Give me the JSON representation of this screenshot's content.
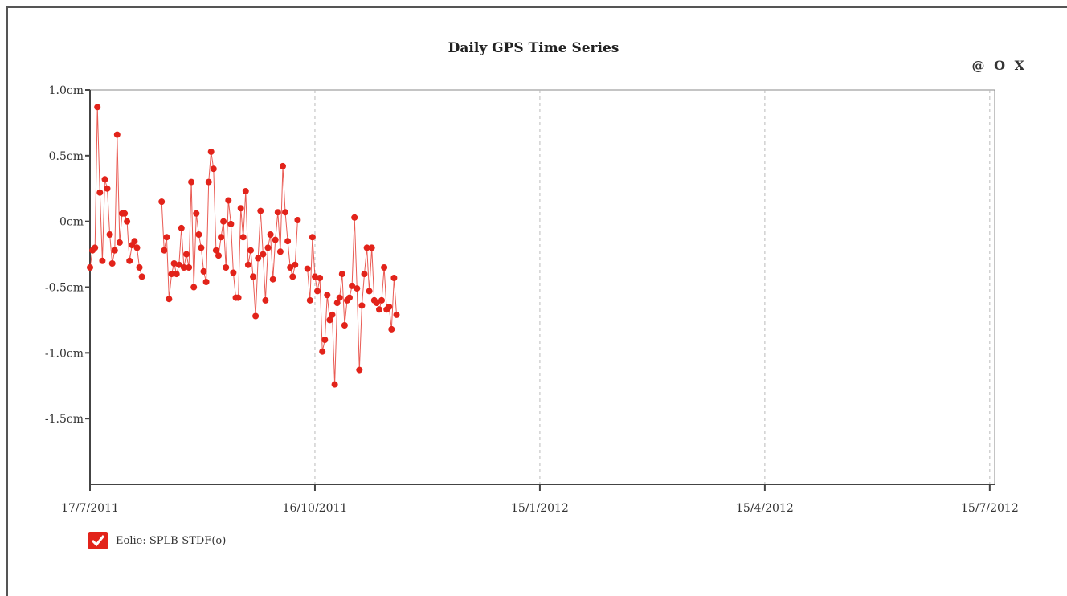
{
  "header": {
    "title": "Daily GPS Time Series",
    "controls": [
      "@",
      "O",
      "X"
    ]
  },
  "legend": {
    "label": "Eolie: SPLB-STDF(o)",
    "checked": true,
    "checkbox_color": "#e2231a"
  },
  "colors": {
    "series": "#e2231a",
    "axis": "#444444",
    "grid": "#bbbbbb"
  },
  "chart_data": {
    "type": "line",
    "title": "Daily GPS Time Series",
    "xlabel": "",
    "ylabel": "",
    "x_ticks": [
      "17/7/2011",
      "16/10/2011",
      "15/1/2012",
      "15/4/2012",
      "15/7/2012"
    ],
    "xlim": [
      "2011-07-17",
      "2012-07-17"
    ],
    "y_ticks": [
      "1.0cm",
      "0.5cm",
      "0cm",
      "-0.5cm",
      "-1.0cm",
      "-1.5cm"
    ],
    "y_tick_values": [
      1.0,
      0.5,
      0.0,
      -0.5,
      -1.0,
      -1.5
    ],
    "ylim": [
      -2.0,
      1.0
    ],
    "unit": "cm",
    "grid": "vertical dashed at x ticks",
    "legend_position": "bottom-left",
    "series": [
      {
        "name": "Eolie: SPLB-STDF(o)",
        "color": "#e2231a",
        "segments": [
          [
            [
              "2011-07-17",
              -0.35
            ],
            [
              "2011-07-18",
              -0.22
            ],
            [
              "2011-07-19",
              -0.2
            ],
            [
              "2011-07-20",
              0.87
            ],
            [
              "2011-07-21",
              0.22
            ],
            [
              "2011-07-22",
              -0.3
            ],
            [
              "2011-07-23",
              0.32
            ],
            [
              "2011-07-24",
              0.25
            ],
            [
              "2011-07-25",
              -0.1
            ],
            [
              "2011-07-26",
              -0.32
            ],
            [
              "2011-07-27",
              -0.22
            ],
            [
              "2011-07-28",
              0.66
            ],
            [
              "2011-07-29",
              -0.16
            ],
            [
              "2011-07-30",
              0.06
            ],
            [
              "2011-07-31",
              0.06
            ],
            [
              "2011-08-01",
              0.0
            ],
            [
              "2011-08-02",
              -0.3
            ],
            [
              "2011-08-03",
              -0.18
            ],
            [
              "2011-08-04",
              -0.15
            ],
            [
              "2011-08-05",
              -0.2
            ],
            [
              "2011-08-06",
              -0.35
            ],
            [
              "2011-08-07",
              -0.42
            ]
          ],
          [
            [
              "2011-08-15",
              0.15
            ],
            [
              "2011-08-16",
              -0.22
            ],
            [
              "2011-08-17",
              -0.12
            ],
            [
              "2011-08-18",
              -0.59
            ],
            [
              "2011-08-19",
              -0.4
            ],
            [
              "2011-08-20",
              -0.32
            ],
            [
              "2011-08-21",
              -0.4
            ],
            [
              "2011-08-22",
              -0.33
            ],
            [
              "2011-08-23",
              -0.05
            ],
            [
              "2011-08-24",
              -0.35
            ],
            [
              "2011-08-25",
              -0.25
            ],
            [
              "2011-08-26",
              -0.35
            ],
            [
              "2011-08-27",
              0.3
            ],
            [
              "2011-08-28",
              -0.5
            ],
            [
              "2011-08-29",
              0.06
            ],
            [
              "2011-08-30",
              -0.1
            ],
            [
              "2011-08-31",
              -0.2
            ],
            [
              "2011-09-01",
              -0.38
            ],
            [
              "2011-09-02",
              -0.46
            ],
            [
              "2011-09-03",
              0.3
            ],
            [
              "2011-09-04",
              0.53
            ],
            [
              "2011-09-05",
              0.4
            ],
            [
              "2011-09-06",
              -0.22
            ],
            [
              "2011-09-07",
              -0.26
            ],
            [
              "2011-09-08",
              -0.12
            ],
            [
              "2011-09-09",
              0.0
            ],
            [
              "2011-09-10",
              -0.35
            ],
            [
              "2011-09-11",
              0.16
            ],
            [
              "2011-09-12",
              -0.02
            ],
            [
              "2011-09-13",
              -0.39
            ],
            [
              "2011-09-14",
              -0.58
            ],
            [
              "2011-09-15",
              -0.58
            ],
            [
              "2011-09-16",
              0.1
            ],
            [
              "2011-09-17",
              -0.12
            ],
            [
              "2011-09-18",
              0.23
            ],
            [
              "2011-09-19",
              -0.33
            ],
            [
              "2011-09-20",
              -0.22
            ],
            [
              "2011-09-21",
              -0.42
            ],
            [
              "2011-09-22",
              -0.72
            ],
            [
              "2011-09-23",
              -0.28
            ],
            [
              "2011-09-24",
              0.08
            ],
            [
              "2011-09-25",
              -0.25
            ],
            [
              "2011-09-26",
              -0.6
            ],
            [
              "2011-09-27",
              -0.2
            ],
            [
              "2011-09-28",
              -0.1
            ],
            [
              "2011-09-29",
              -0.44
            ],
            [
              "2011-09-30",
              -0.14
            ],
            [
              "2011-10-01",
              0.07
            ],
            [
              "2011-10-02",
              -0.23
            ],
            [
              "2011-10-03",
              0.42
            ],
            [
              "2011-10-04",
              0.07
            ],
            [
              "2011-10-05",
              -0.15
            ],
            [
              "2011-10-06",
              -0.35
            ],
            [
              "2011-10-07",
              -0.42
            ],
            [
              "2011-10-08",
              -0.33
            ],
            [
              "2011-10-09",
              0.01
            ]
          ],
          [
            [
              "2011-10-13",
              -0.36
            ],
            [
              "2011-10-14",
              -0.6
            ],
            [
              "2011-10-15",
              -0.12
            ],
            [
              "2011-10-16",
              -0.42
            ],
            [
              "2011-10-17",
              -0.53
            ],
            [
              "2011-10-18",
              -0.43
            ],
            [
              "2011-10-19",
              -0.99
            ],
            [
              "2011-10-20",
              -0.9
            ],
            [
              "2011-10-21",
              -0.56
            ],
            [
              "2011-10-22",
              -0.75
            ],
            [
              "2011-10-23",
              -0.71
            ],
            [
              "2011-10-24",
              -1.24
            ],
            [
              "2011-10-25",
              -0.62
            ],
            [
              "2011-10-26",
              -0.58
            ],
            [
              "2011-10-27",
              -0.4
            ],
            [
              "2011-10-28",
              -0.79
            ],
            [
              "2011-10-29",
              -0.6
            ],
            [
              "2011-10-30",
              -0.58
            ],
            [
              "2011-10-31",
              -0.49
            ],
            [
              "2011-11-01",
              0.03
            ],
            [
              "2011-11-02",
              -0.51
            ],
            [
              "2011-11-03",
              -1.13
            ],
            [
              "2011-11-04",
              -0.64
            ],
            [
              "2011-11-05",
              -0.4
            ],
            [
              "2011-11-06",
              -0.2
            ],
            [
              "2011-11-07",
              -0.53
            ],
            [
              "2011-11-08",
              -0.2
            ],
            [
              "2011-11-09",
              -0.6
            ],
            [
              "2011-11-10",
              -0.62
            ],
            [
              "2011-11-11",
              -0.67
            ],
            [
              "2011-11-12",
              -0.6
            ],
            [
              "2011-11-13",
              -0.35
            ],
            [
              "2011-11-14",
              -0.67
            ],
            [
              "2011-11-15",
              -0.65
            ],
            [
              "2011-11-16",
              -0.82
            ],
            [
              "2011-11-17",
              -0.43
            ],
            [
              "2011-11-18",
              -0.71
            ]
          ]
        ]
      }
    ]
  }
}
